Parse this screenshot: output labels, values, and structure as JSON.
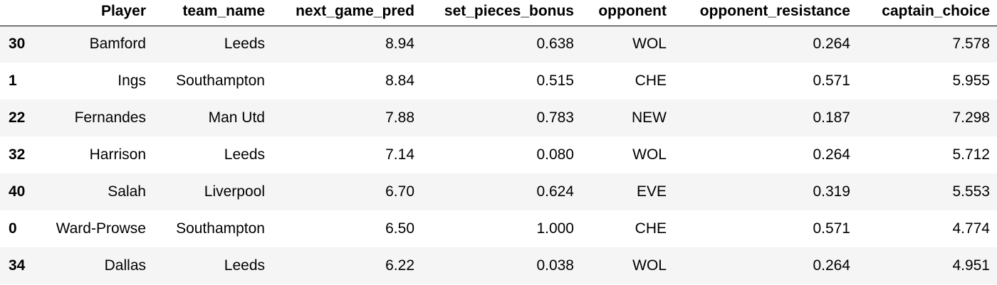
{
  "table": {
    "columns": [
      "",
      "Player",
      "team_name",
      "next_game_pred",
      "set_pieces_bonus",
      "opponent",
      "opponent_resistance",
      "captain_choice"
    ],
    "rows": [
      {
        "index": "30",
        "player": "Bamford",
        "team_name": "Leeds",
        "next_game_pred": "8.94",
        "set_pieces_bonus": "0.638",
        "opponent": "WOL",
        "opponent_resistance": "0.264",
        "captain_choice": "7.578"
      },
      {
        "index": "1",
        "player": "Ings",
        "team_name": "Southampton",
        "next_game_pred": "8.84",
        "set_pieces_bonus": "0.515",
        "opponent": "CHE",
        "opponent_resistance": "0.571",
        "captain_choice": "5.955"
      },
      {
        "index": "22",
        "player": "Fernandes",
        "team_name": "Man Utd",
        "next_game_pred": "7.88",
        "set_pieces_bonus": "0.783",
        "opponent": "NEW",
        "opponent_resistance": "0.187",
        "captain_choice": "7.298"
      },
      {
        "index": "32",
        "player": "Harrison",
        "team_name": "Leeds",
        "next_game_pred": "7.14",
        "set_pieces_bonus": "0.080",
        "opponent": "WOL",
        "opponent_resistance": "0.264",
        "captain_choice": "5.712"
      },
      {
        "index": "40",
        "player": "Salah",
        "team_name": "Liverpool",
        "next_game_pred": "6.70",
        "set_pieces_bonus": "0.624",
        "opponent": "EVE",
        "opponent_resistance": "0.319",
        "captain_choice": "5.553"
      },
      {
        "index": "0",
        "player": "Ward-Prowse",
        "team_name": "Southampton",
        "next_game_pred": "6.50",
        "set_pieces_bonus": "1.000",
        "opponent": "CHE",
        "opponent_resistance": "0.571",
        "captain_choice": "4.774"
      },
      {
        "index": "34",
        "player": "Dallas",
        "team_name": "Leeds",
        "next_game_pred": "6.22",
        "set_pieces_bonus": "0.038",
        "opponent": "WOL",
        "opponent_resistance": "0.264",
        "captain_choice": "4.951"
      }
    ]
  },
  "colors": {
    "header_rule": "#000000",
    "row_stripe": "#f5f5f5",
    "row_plain": "#ffffff"
  }
}
